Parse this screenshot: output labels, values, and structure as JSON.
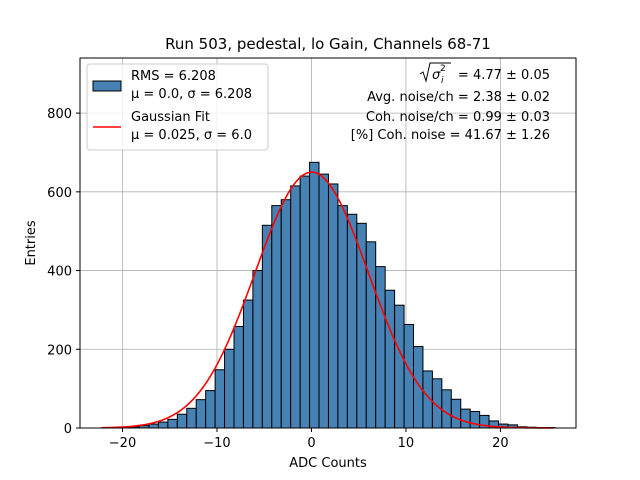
{
  "chart_data": {
    "type": "bar",
    "title": "Run 503, pedestal, lo Gain, Channels 68-71",
    "xlabel": "ADC Counts",
    "ylabel": "Entries",
    "xlim": [
      -24.5,
      28
    ],
    "ylim": [
      0,
      940
    ],
    "xticks": [
      -20,
      -10,
      0,
      10,
      20
    ],
    "xtick_labels": [
      "−20",
      "−10",
      "0",
      "10",
      "20"
    ],
    "yticks": [
      0,
      200,
      400,
      600,
      800
    ],
    "ytick_labels": [
      "0",
      "200",
      "400",
      "600",
      "800"
    ],
    "grid": true,
    "legend_position": "top-left",
    "histogram": {
      "name": "RMS = 6.208 / μ = 0.0, σ = 6.208",
      "color": "#4682b4",
      "edge_color": "#000000",
      "bins": [
        {
          "lo": -22.2,
          "hi": -21.2,
          "count": 1
        },
        {
          "lo": -21.2,
          "hi": -20.2,
          "count": 1
        },
        {
          "lo": -20.2,
          "hi": -19.2,
          "count": 2
        },
        {
          "lo": -19.2,
          "hi": -18.2,
          "count": 3
        },
        {
          "lo": -18.2,
          "hi": -17.2,
          "count": 6
        },
        {
          "lo": -17.2,
          "hi": -16.2,
          "count": 10
        },
        {
          "lo": -16.2,
          "hi": -15.2,
          "count": 15
        },
        {
          "lo": -15.2,
          "hi": -14.2,
          "count": 22
        },
        {
          "lo": -14.2,
          "hi": -13.2,
          "count": 35
        },
        {
          "lo": -13.2,
          "hi": -12.2,
          "count": 50
        },
        {
          "lo": -12.2,
          "hi": -11.2,
          "count": 72
        },
        {
          "lo": -11.2,
          "hi": -10.2,
          "count": 95
        },
        {
          "lo": -10.2,
          "hi": -9.2,
          "count": 148
        },
        {
          "lo": -9.2,
          "hi": -8.2,
          "count": 200
        },
        {
          "lo": -8.2,
          "hi": -7.2,
          "count": 258
        },
        {
          "lo": -7.2,
          "hi": -6.2,
          "count": 325
        },
        {
          "lo": -6.2,
          "hi": -5.2,
          "count": 400
        },
        {
          "lo": -5.2,
          "hi": -4.2,
          "count": 515
        },
        {
          "lo": -4.2,
          "hi": -3.2,
          "count": 565
        },
        {
          "lo": -3.2,
          "hi": -2.2,
          "count": 580
        },
        {
          "lo": -2.2,
          "hi": -1.2,
          "count": 615
        },
        {
          "lo": -1.2,
          "hi": -0.2,
          "count": 640
        },
        {
          "lo": -0.2,
          "hi": 0.8,
          "count": 675
        },
        {
          "lo": 0.8,
          "hi": 1.8,
          "count": 645
        },
        {
          "lo": 1.8,
          "hi": 2.8,
          "count": 620
        },
        {
          "lo": 2.8,
          "hi": 3.8,
          "count": 565
        },
        {
          "lo": 3.8,
          "hi": 4.8,
          "count": 543
        },
        {
          "lo": 4.8,
          "hi": 5.8,
          "count": 520
        },
        {
          "lo": 5.8,
          "hi": 6.8,
          "count": 473
        },
        {
          "lo": 6.8,
          "hi": 7.8,
          "count": 410
        },
        {
          "lo": 7.8,
          "hi": 8.8,
          "count": 350
        },
        {
          "lo": 8.8,
          "hi": 9.8,
          "count": 312
        },
        {
          "lo": 9.8,
          "hi": 10.8,
          "count": 263
        },
        {
          "lo": 10.8,
          "hi": 11.8,
          "count": 207
        },
        {
          "lo": 11.8,
          "hi": 12.8,
          "count": 145
        },
        {
          "lo": 12.8,
          "hi": 13.8,
          "count": 125
        },
        {
          "lo": 13.8,
          "hi": 14.8,
          "count": 97
        },
        {
          "lo": 14.8,
          "hi": 15.8,
          "count": 73
        },
        {
          "lo": 15.8,
          "hi": 16.8,
          "count": 48
        },
        {
          "lo": 16.8,
          "hi": 17.8,
          "count": 42
        },
        {
          "lo": 17.8,
          "hi": 18.8,
          "count": 32
        },
        {
          "lo": 18.8,
          "hi": 19.8,
          "count": 18
        },
        {
          "lo": 19.8,
          "hi": 20.8,
          "count": 10
        },
        {
          "lo": 20.8,
          "hi": 21.8,
          "count": 8
        },
        {
          "lo": 21.8,
          "hi": 22.8,
          "count": 3
        },
        {
          "lo": 22.8,
          "hi": 23.8,
          "count": 2
        },
        {
          "lo": 23.8,
          "hi": 24.8,
          "count": 1
        },
        {
          "lo": 24.8,
          "hi": 25.8,
          "count": 1
        }
      ]
    },
    "fit": {
      "name": "Gaussian Fit",
      "type": "gaussian",
      "mu": 0.025,
      "sigma": 6.0,
      "amplitude": 650,
      "x_range": [
        -22.2,
        25.6
      ],
      "color": "#ff0000"
    },
    "legend": [
      {
        "kind": "patch",
        "line1": "RMS = 6.208",
        "line2": "μ = 0.0, σ = 6.208"
      },
      {
        "kind": "line",
        "line1": "Gaussian Fit",
        "line2": "μ = 0.025, σ = 6.0"
      }
    ],
    "annotations": {
      "line1": "= 4.77 ± 0.05",
      "line2": "Avg. noise/ch = 2.38 ± 0.02",
      "line3": "Coh. noise/ch = 0.99 ± 0.03",
      "line4": "[%] Coh. noise = 41.67 ± 1.26"
    }
  }
}
